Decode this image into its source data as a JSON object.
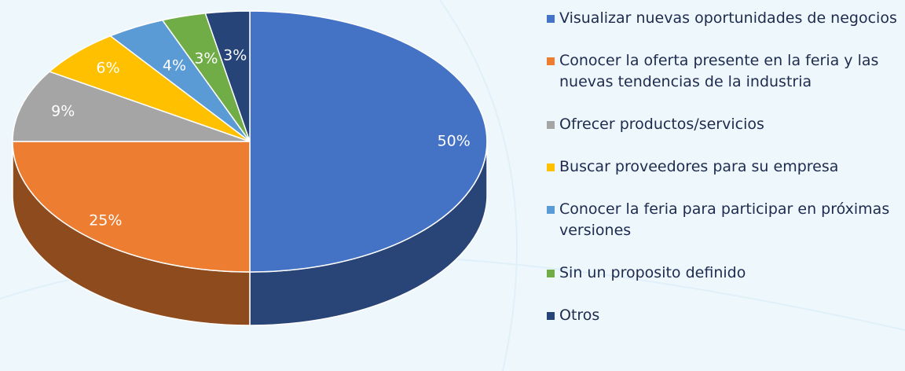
{
  "chart_data": {
    "type": "pie",
    "categories": [
      "Visualizar nuevas oportunidades de negocios",
      "Conocer la oferta presente en la feria y las nuevas tendencias de la industria",
      "Ofrecer productos/servicios",
      "Buscar proveedores para su empresa",
      "Conocer la feria para participar en próximas versiones",
      "Sin un proposito definido",
      "Otros"
    ],
    "values": [
      50,
      25,
      9,
      6,
      4,
      3,
      3
    ],
    "value_labels": [
      "50%",
      "25%",
      "9%",
      "6%",
      "4%",
      "3%",
      "3%"
    ],
    "colors": [
      "#4472c4",
      "#ed7d31",
      "#a5a5a5",
      "#ffc000",
      "#5b9bd5",
      "#70ad47",
      "#264478"
    ],
    "legend": "right"
  }
}
